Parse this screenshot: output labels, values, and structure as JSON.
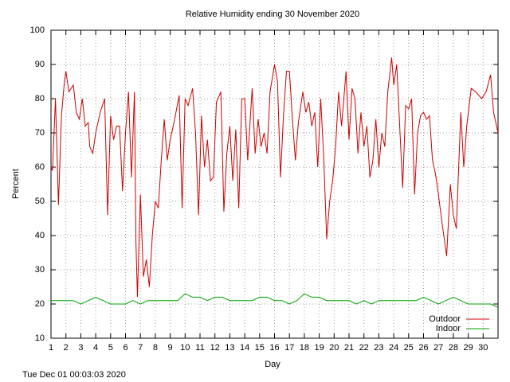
{
  "chart_data": {
    "type": "line",
    "title": "Relative Humidity ending 30 November 2020",
    "xlabel": "Day",
    "ylabel": "Percent",
    "footer": "Tue Dec 01 00:03:03 2020",
    "xlim": [
      1,
      31
    ],
    "ylim": [
      10,
      100
    ],
    "xticks": [
      1,
      2,
      3,
      4,
      5,
      6,
      7,
      8,
      9,
      10,
      11,
      12,
      13,
      14,
      15,
      16,
      17,
      18,
      19,
      20,
      21,
      22,
      23,
      24,
      25,
      26,
      27,
      28,
      29,
      30
    ],
    "yticks": [
      10,
      20,
      30,
      40,
      50,
      60,
      70,
      80,
      90,
      100
    ],
    "grid": true,
    "legend": "bottom-right",
    "series": [
      {
        "name": "Outdoor",
        "color": "#cc0000",
        "x": [
          1.0,
          1.1,
          1.3,
          1.5,
          1.7,
          1.9,
          2.0,
          2.2,
          2.5,
          2.7,
          2.9,
          3.1,
          3.3,
          3.5,
          3.6,
          3.8,
          4.0,
          4.3,
          4.6,
          4.8,
          5.0,
          5.2,
          5.4,
          5.6,
          5.8,
          6.0,
          6.2,
          6.4,
          6.6,
          6.7,
          6.8,
          7.0,
          7.2,
          7.4,
          7.6,
          7.8,
          8.0,
          8.2,
          8.4,
          8.6,
          8.8,
          9.0,
          9.3,
          9.6,
          9.8,
          10.0,
          10.2,
          10.5,
          10.7,
          10.9,
          11.1,
          11.3,
          11.5,
          11.7,
          11.9,
          12.1,
          12.4,
          12.6,
          12.8,
          13.0,
          13.2,
          13.4,
          13.6,
          13.8,
          14.0,
          14.2,
          14.5,
          14.7,
          14.9,
          15.1,
          15.3,
          15.5,
          15.7,
          16.0,
          16.2,
          16.4,
          16.6,
          16.8,
          17.0,
          17.2,
          17.4,
          17.6,
          17.9,
          18.1,
          18.3,
          18.5,
          18.7,
          18.9,
          19.1,
          19.3,
          19.5,
          19.7,
          19.9,
          20.1,
          20.3,
          20.5,
          20.8,
          21.0,
          21.2,
          21.4,
          21.6,
          21.8,
          22.0,
          22.2,
          22.4,
          22.6,
          22.8,
          23.0,
          23.2,
          23.4,
          23.6,
          23.86,
          24.0,
          24.2,
          24.4,
          24.6,
          24.8,
          25.0,
          25.2,
          25.4,
          25.6,
          25.8,
          26.0,
          26.2,
          26.4,
          26.6,
          26.8,
          27.0,
          27.2,
          27.55,
          27.8,
          28.0,
          28.2,
          28.5,
          28.7,
          28.9,
          29.2,
          29.5,
          29.9,
          30.2,
          30.5,
          30.7,
          31.0
        ],
        "values": [
          60,
          59,
          80,
          49,
          75,
          85,
          88,
          82,
          84,
          76,
          74,
          80,
          72,
          73,
          66,
          64,
          70,
          76,
          80,
          46,
          75,
          68,
          72,
          72,
          53,
          70,
          82,
          57,
          82,
          38,
          22,
          52,
          28,
          33,
          25,
          40,
          50,
          48,
          62,
          74,
          62,
          68,
          74,
          81,
          48,
          80,
          78,
          83,
          70,
          46,
          75,
          60,
          68,
          56,
          57,
          79,
          82,
          47,
          64,
          72,
          56,
          71,
          48,
          80,
          80,
          62,
          83,
          64,
          74,
          66,
          70,
          64,
          82,
          90,
          85,
          57,
          75,
          88,
          88,
          74,
          62,
          73,
          82,
          76,
          79,
          72,
          76,
          60,
          80,
          63,
          39,
          50,
          56,
          66,
          82,
          72,
          88,
          68,
          83,
          80,
          64,
          76,
          66,
          72,
          57,
          62,
          74,
          60,
          70,
          66,
          82,
          92,
          84,
          90,
          72,
          54,
          78,
          77,
          80,
          52,
          70,
          75,
          76,
          74,
          75,
          62,
          58,
          52,
          45,
          34,
          55,
          46,
          42,
          76,
          60,
          72,
          83,
          82,
          80,
          82,
          87,
          76,
          70
        ]
      },
      {
        "name": "Indoor",
        "color": "#00a000",
        "x": [
          1,
          1.5,
          2,
          2.5,
          3,
          3.5,
          4,
          4.5,
          5,
          5.5,
          6,
          6.5,
          7,
          7.5,
          8,
          8.5,
          9,
          9.5,
          10,
          10.5,
          11,
          11.5,
          12,
          12.5,
          13,
          13.5,
          14,
          14.5,
          15,
          15.5,
          16,
          16.5,
          17,
          17.5,
          18,
          18.5,
          19,
          19.5,
          20,
          20.5,
          21,
          21.5,
          22,
          22.5,
          23,
          23.5,
          24,
          24.5,
          25,
          25.5,
          26,
          26.5,
          27,
          27.5,
          28,
          28.5,
          29,
          29.5,
          30,
          30.5,
          31
        ],
        "values": [
          21,
          21,
          21,
          21,
          20,
          21,
          22,
          21,
          20,
          20,
          20,
          21,
          20,
          21,
          21,
          21,
          21,
          21,
          23,
          22,
          22,
          21,
          22,
          22,
          21,
          21,
          21,
          21,
          22,
          22,
          21,
          21,
          20,
          21,
          23,
          22,
          22,
          21,
          21,
          21,
          21,
          20,
          21,
          20,
          21,
          21,
          21,
          21,
          21,
          21,
          22,
          21,
          20,
          21,
          22,
          21,
          20,
          20,
          20,
          20,
          19
        ]
      }
    ]
  }
}
